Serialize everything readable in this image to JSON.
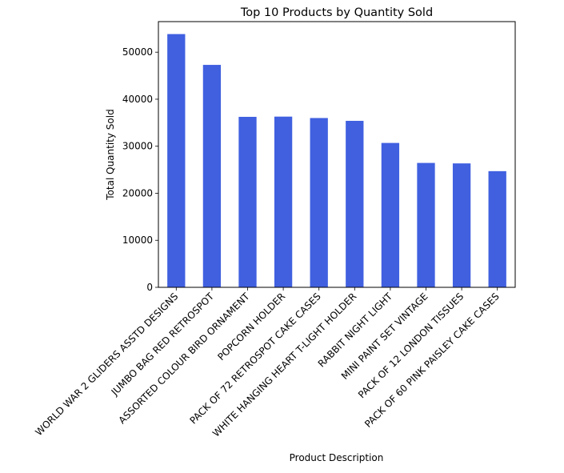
{
  "chart_data": {
    "type": "bar",
    "title": "Top 10 Products by Quantity Sold",
    "xlabel": "Product Description",
    "ylabel": "Total Quantity Sold",
    "categories": [
      "WORLD WAR 2 GLIDERS ASSTD DESIGNS",
      "JUMBO BAG RED RETROSPOT",
      "ASSORTED COLOUR BIRD ORNAMENT",
      "POPCORN HOLDER",
      "PACK OF 72 RETROSPOT CAKE CASES",
      "WHITE HANGING HEART T-LIGHT HOLDER",
      "RABBIT NIGHT LIGHT",
      "MINI PAINT SET VINTAGE",
      "PACK OF 12 LONDON TISSUES",
      "PACK OF 60 PINK PAISLEY CAKE CASES"
    ],
    "values": [
      53850,
      47300,
      36250,
      36300,
      36000,
      35400,
      30700,
      26450,
      26350,
      24700
    ],
    "ylim": [
      0,
      56500
    ],
    "yticks": [
      0,
      10000,
      20000,
      30000,
      40000,
      50000
    ],
    "ytick_labels": [
      "0",
      "10000",
      "20000",
      "30000",
      "40000",
      "50000"
    ],
    "grid": false,
    "legend": "none",
    "bar_color": "#4060e0"
  }
}
